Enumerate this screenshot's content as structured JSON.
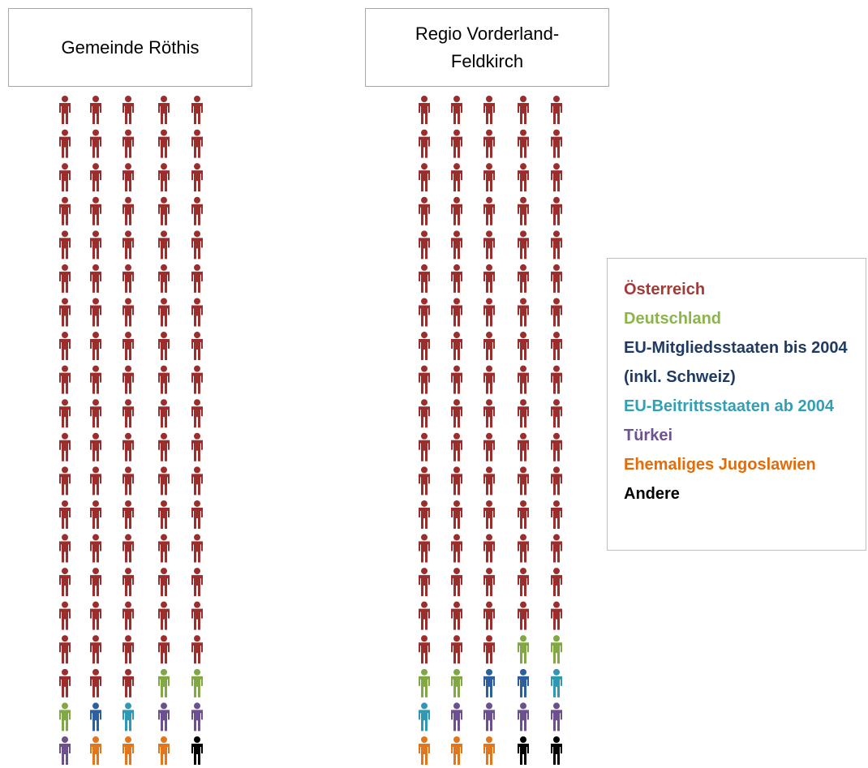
{
  "chart_data": {
    "type": "pictogram",
    "categories": [
      "Österreich",
      "Deutschland",
      "EU-Mitgliedsstaaten bis 2004 (inkl. Schweiz)",
      "EU-Beitrittsstaaten ab 2004",
      "Türkei",
      "Ehemaliges Jugoslawien",
      "Andere"
    ],
    "colors": [
      "#9b2d2d",
      "#82a845",
      "#2d5f9e",
      "#2f98b2",
      "#6c4f8d",
      "#e2761c",
      "#000000"
    ],
    "legend_colors": [
      "#a33a3a",
      "#8db44a",
      "#1f3a63",
      "#31a0b5",
      "#6f5193",
      "#e36c09",
      "#000000"
    ],
    "series": [
      {
        "name": "Gemeinde Röthis",
        "values": [
          88,
          3,
          1,
          1,
          3,
          3,
          1
        ]
      },
      {
        "name": "Regio Vorderland-Feldkirch",
        "values": [
          83,
          4,
          2,
          2,
          4,
          3,
          2
        ]
      }
    ]
  }
}
